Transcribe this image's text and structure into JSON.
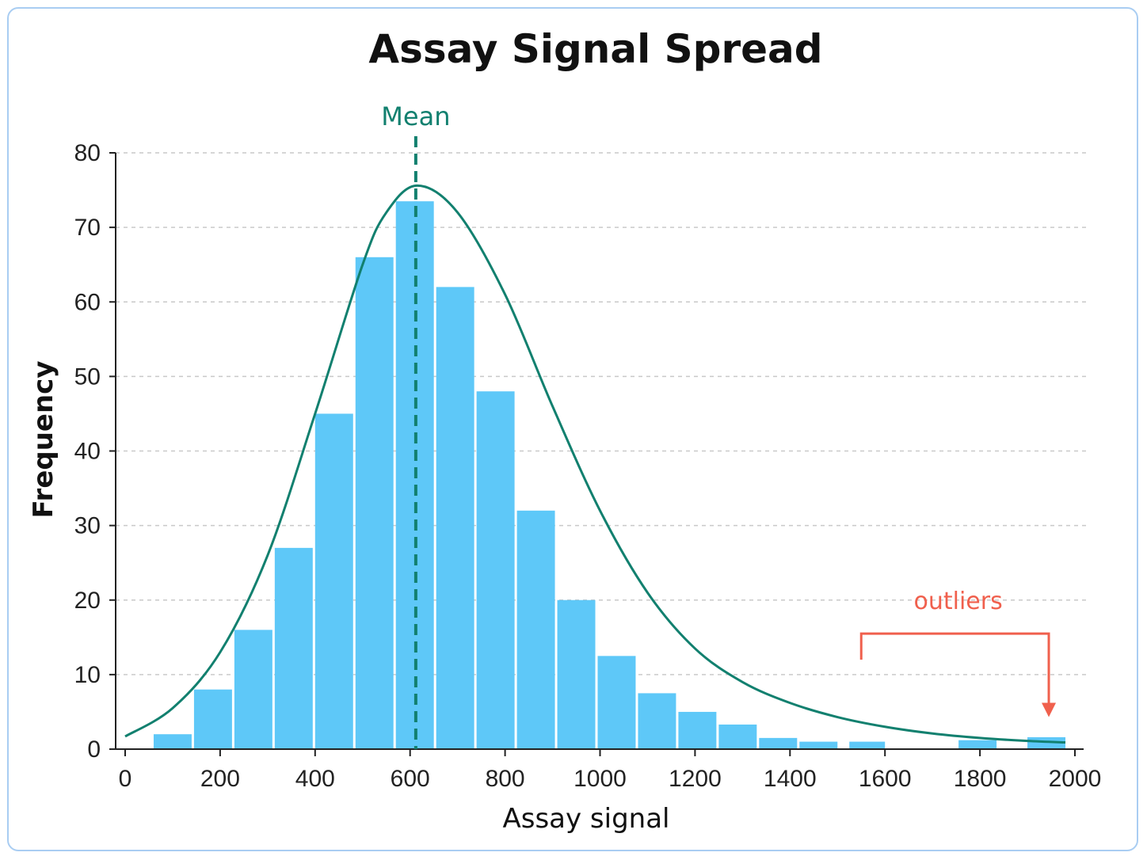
{
  "chart_data": {
    "type": "bar",
    "title": "Assay Signal Spread",
    "xlabel": "Assay signal",
    "ylabel": "Frequency",
    "xlim": [
      0,
      2000
    ],
    "ylim": [
      0,
      80
    ],
    "xticks": [
      0,
      200,
      400,
      600,
      800,
      1000,
      1200,
      1400,
      1600,
      1800,
      2000
    ],
    "yticks": [
      0,
      10,
      20,
      30,
      40,
      50,
      60,
      70,
      80
    ],
    "grid": true,
    "bar_color": "#5ec8f8",
    "bars": [
      {
        "x0": 60,
        "x1": 140,
        "value": 2
      },
      {
        "x0": 145,
        "x1": 225,
        "value": 8
      },
      {
        "x0": 230,
        "x1": 310,
        "value": 16
      },
      {
        "x0": 315,
        "x1": 395,
        "value": 27
      },
      {
        "x0": 400,
        "x1": 480,
        "value": 45
      },
      {
        "x0": 485,
        "x1": 565,
        "value": 66
      },
      {
        "x0": 570,
        "x1": 650,
        "value": 73.5
      },
      {
        "x0": 655,
        "x1": 735,
        "value": 62
      },
      {
        "x0": 740,
        "x1": 820,
        "value": 48
      },
      {
        "x0": 825,
        "x1": 905,
        "value": 32
      },
      {
        "x0": 910,
        "x1": 990,
        "value": 20
      },
      {
        "x0": 995,
        "x1": 1075,
        "value": 12.5
      },
      {
        "x0": 1080,
        "x1": 1160,
        "value": 7.5
      },
      {
        "x0": 1165,
        "x1": 1245,
        "value": 5
      },
      {
        "x0": 1250,
        "x1": 1330,
        "value": 3.3
      },
      {
        "x0": 1335,
        "x1": 1415,
        "value": 1.5
      },
      {
        "x0": 1420,
        "x1": 1500,
        "value": 1
      },
      {
        "x0": 1525,
        "x1": 1600,
        "value": 1
      },
      {
        "x0": 1755,
        "x1": 1835,
        "value": 1.2
      },
      {
        "x0": 1900,
        "x1": 1980,
        "value": 1.6
      }
    ],
    "fit_curve": {
      "color": "#12806f",
      "points": [
        [
          0,
          1.7
        ],
        [
          100,
          5.5
        ],
        [
          200,
          13
        ],
        [
          300,
          26
        ],
        [
          400,
          45
        ],
        [
          500,
          65
        ],
        [
          550,
          72
        ],
        [
          615,
          75.6
        ],
        [
          700,
          72
        ],
        [
          800,
          61
        ],
        [
          900,
          46
        ],
        [
          1000,
          32
        ],
        [
          1100,
          21
        ],
        [
          1200,
          13.5
        ],
        [
          1300,
          9
        ],
        [
          1400,
          6.2
        ],
        [
          1500,
          4.3
        ],
        [
          1600,
          3
        ],
        [
          1700,
          2.1
        ],
        [
          1800,
          1.5
        ],
        [
          1900,
          1.1
        ],
        [
          1980,
          0.9
        ]
      ]
    },
    "mean": {
      "label": "Mean",
      "x": 612,
      "color": "#12806f"
    },
    "annotation": {
      "text": "outliers",
      "color": "#f0604d",
      "bracket_x": [
        1550,
        1945
      ],
      "bracket_y": [
        12,
        15.5
      ],
      "arrow_tip_y": 4.3
    }
  }
}
